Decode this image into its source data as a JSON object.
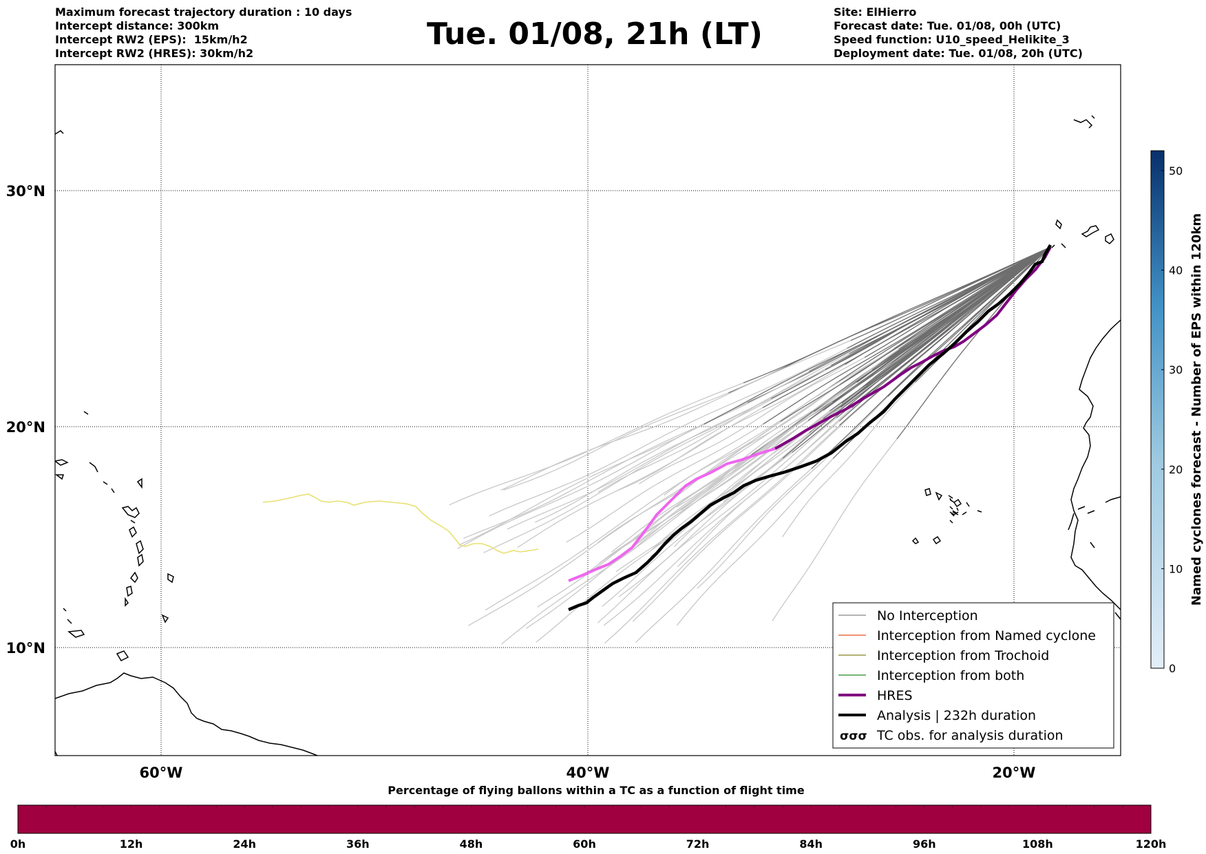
{
  "header": {
    "left_lines": [
      "Maximum forecast trajectory duration : 10 days",
      "Intercept distance: 300km",
      "Intercept RW2 (EPS):  15km/h2",
      "Intercept RW2 (HRES): 30km/h2"
    ],
    "title": "Tue. 01/08, 21h (LT)",
    "right_lines": [
      "Site: ElHierro",
      "Forecast date: Tue. 01/08, 00h (UTC)",
      "Speed function: U10_speed_Helikite_3",
      "Deployment date: Tue. 01/08, 20h (UTC)"
    ]
  },
  "map": {
    "lat_labels": [
      "30°N",
      "20°N",
      "10°N"
    ],
    "lon_labels": [
      "60°W",
      "40°W",
      "20°W"
    ],
    "colors": {
      "no_interception": "#888888",
      "eps_far": "#c8c8c8",
      "eps_near": "#6e6e6e",
      "named_cyclone": "#e8501e",
      "trochoid": "#808020",
      "both": "#228b22",
      "hres": "#800080",
      "hres_light": "#ee66ee",
      "analysis": "#000000",
      "yellow_track": "#e8e070"
    }
  },
  "legend": {
    "items": [
      {
        "label": "No Interception",
        "color": "#888888",
        "style": "thin"
      },
      {
        "label": "Interception from Named cyclone",
        "color": "#e8501e",
        "style": "thin"
      },
      {
        "label": "Interception from Trochoid",
        "color": "#808020",
        "style": "thin"
      },
      {
        "label": "Interception from both",
        "color": "#228b22",
        "style": "thin"
      },
      {
        "label": "HRES",
        "color": "#800080",
        "style": "thick"
      },
      {
        "label": "Analysis | 232h duration",
        "color": "#000000",
        "style": "thick"
      },
      {
        "label": "TC obs. for analysis duration",
        "color": "#000000",
        "style": "tc-symbol"
      }
    ]
  },
  "colorbar": {
    "label": "Named cyclones forecast - Number of EPS within 120km",
    "ticks": [
      "0",
      "10",
      "20",
      "30",
      "40",
      "50"
    ],
    "max": 52,
    "color_low": "#e3eef9",
    "color_high": "#08306b"
  },
  "time_bar": {
    "title": "Percentage of flying ballons within a TC as a function of flight time",
    "ticks": [
      "0h",
      "12h",
      "24h",
      "36h",
      "48h",
      "60h",
      "72h",
      "84h",
      "96h",
      "108h",
      "120h"
    ],
    "color": "#a00040"
  }
}
